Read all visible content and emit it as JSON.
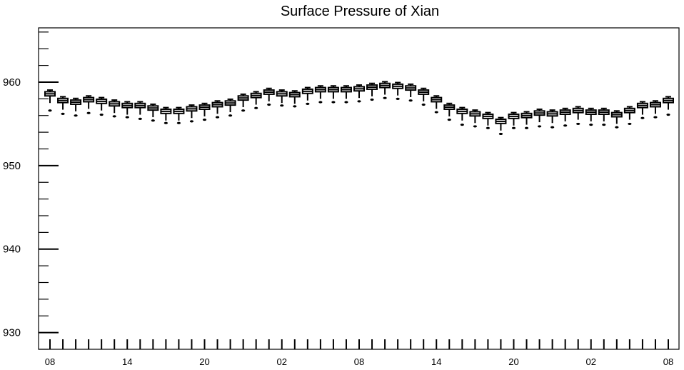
{
  "chart_data": {
    "type": "boxplot",
    "title": "Surface Pressure of Xian",
    "xlabel": "",
    "ylabel": "",
    "ylim": [
      928,
      966.5
    ],
    "yticks": [
      930,
      940,
      950,
      960
    ],
    "xtick_labels": [
      "08",
      "14",
      "20",
      "02",
      "08",
      "14",
      "20",
      "02",
      "08"
    ],
    "x_hours": [
      8,
      9,
      10,
      11,
      12,
      13,
      14,
      15,
      16,
      17,
      18,
      19,
      20,
      21,
      22,
      23,
      0,
      1,
      2,
      3,
      4,
      5,
      6,
      7,
      8,
      9,
      10,
      11,
      12,
      13,
      14,
      15,
      16,
      17,
      18,
      19,
      20,
      21,
      22,
      23,
      0,
      1,
      2,
      3,
      4,
      5,
      6,
      7,
      8
    ],
    "medians": [
      958.6,
      957.8,
      957.6,
      957.9,
      957.7,
      957.4,
      957.2,
      957.2,
      956.9,
      956.5,
      956.5,
      956.8,
      957.0,
      957.3,
      957.5,
      958.1,
      958.4,
      958.8,
      958.6,
      958.5,
      958.9,
      959.1,
      959.1,
      959.1,
      959.2,
      959.4,
      959.6,
      959.5,
      959.3,
      958.8,
      957.9,
      957.0,
      956.5,
      956.2,
      955.9,
      955.3,
      955.9,
      956.0,
      956.3,
      956.2,
      956.4,
      956.6,
      956.4,
      956.4,
      956.1,
      956.6,
      957.2,
      957.3,
      957.8
    ],
    "outliers": [
      956.6,
      956.2,
      956.0,
      956.3,
      956.1,
      955.9,
      955.8,
      955.6,
      955.4,
      955.1,
      955.1,
      955.3,
      955.5,
      955.8,
      956.0,
      956.6,
      956.9,
      957.3,
      957.2,
      957.1,
      957.4,
      957.6,
      957.6,
      957.6,
      957.7,
      957.9,
      958.1,
      958.0,
      957.8,
      957.3,
      956.4,
      955.5,
      954.9,
      954.7,
      954.5,
      953.8,
      954.5,
      954.5,
      954.7,
      954.6,
      954.8,
      955.0,
      954.9,
      954.9,
      954.6,
      955.0,
      955.7,
      955.8,
      956.1
    ],
    "grid": false,
    "legend": "none"
  }
}
